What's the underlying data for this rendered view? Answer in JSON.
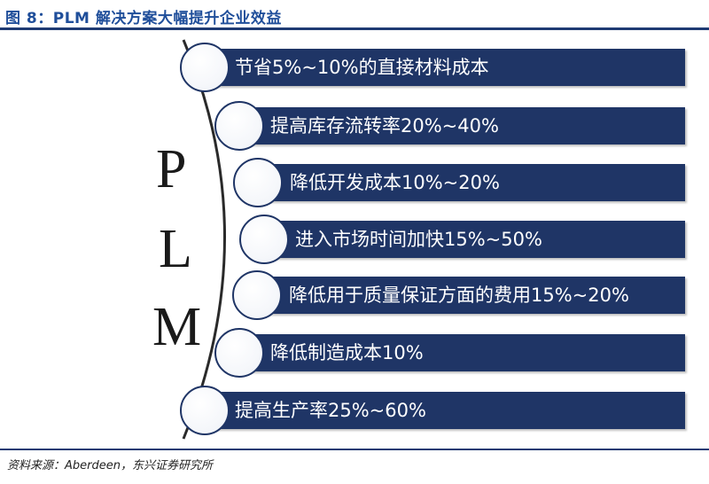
{
  "figure": {
    "title": "图 8：PLM 解决方案大幅提升企业效益",
    "source": "资料来源：Aberdeen，东兴证券研究所"
  },
  "plm_letters": [
    "P",
    "L",
    "M"
  ],
  "benefits": [
    {
      "label": "节省5%~10%的直接材料成本"
    },
    {
      "label": "提高库存流转率20%~40%"
    },
    {
      "label": "降低开发成本10%~20%"
    },
    {
      "label": "进入市场时间加快15%~50%"
    },
    {
      "label": "降低用于质量保证方面的费用15%~20%"
    },
    {
      "label": "降低制造成本10%"
    },
    {
      "label": "提高生产率25%~60%"
    }
  ],
  "colors": {
    "bar": "#1f3566",
    "title": "#1f4e9a",
    "rule": "#1f3b73",
    "bar_text": "#ffffff"
  }
}
